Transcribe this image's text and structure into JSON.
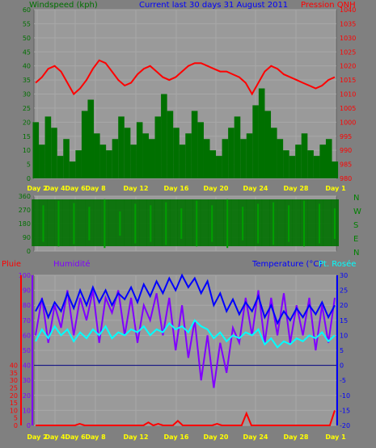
{
  "colors": {
    "background": "#808080",
    "plot_bg": "#9a9a9a",
    "grid": "#a8a8a8",
    "wind": "#007000",
    "pressure": "#ff0000",
    "humidity": "#8000ff",
    "temperature": "#0000ff",
    "dew": "#00ffff",
    "rain": "#ff0000",
    "day_label": "#ffff00",
    "title": "#0000ff",
    "dir_letter": "#008000"
  },
  "titles": {
    "wind": "Windspeed (kph)",
    "period": "Current last 30 days 31 August 2011",
    "pressure": "Pression QNH",
    "rain": "Pluie",
    "humidity": "Humidité",
    "temperature": "Temperature (°C)",
    "dew": "Pt. Rosée"
  },
  "direction_letters": [
    "N",
    "W",
    "S",
    "E",
    "N"
  ],
  "chart_data": [
    {
      "type": "area",
      "name": "wind-pressure",
      "x_ticks": [
        "Day 2",
        "Day 4",
        "Day 6",
        "Day 8",
        "Day 12",
        "Day 16",
        "Day 20",
        "Day 24",
        "Day 28",
        "Day 1"
      ],
      "y_left": {
        "label": "Windspeed (kph)",
        "ticks": [
          0,
          5,
          10,
          15,
          20,
          25,
          30,
          35,
          40,
          45,
          50,
          55,
          60
        ],
        "ylim": [
          0,
          60
        ]
      },
      "y_right": {
        "label": "Pression QNH",
        "ticks": [
          980,
          985,
          990,
          995,
          1000,
          1005,
          1010,
          1015,
          1020,
          1025,
          1030,
          1035,
          1040
        ],
        "ylim": [
          980,
          1040
        ]
      },
      "series": [
        {
          "name": "Windspeed (kph)",
          "values": [
            20,
            12,
            22,
            18,
            8,
            14,
            6,
            10,
            24,
            28,
            16,
            12,
            10,
            14,
            22,
            18,
            12,
            20,
            16,
            14,
            22,
            30,
            24,
            18,
            12,
            16,
            24,
            20,
            14,
            10,
            8,
            14,
            18,
            22,
            14,
            16,
            26,
            32,
            24,
            18,
            14,
            10,
            8,
            12,
            16,
            10,
            8,
            12,
            14,
            6
          ]
        },
        {
          "name": "Pression QNH",
          "values": [
            1014,
            1016,
            1019,
            1020,
            1018,
            1014,
            1010,
            1012,
            1015,
            1019,
            1022,
            1021,
            1018,
            1015,
            1013,
            1014,
            1017,
            1019,
            1020,
            1018,
            1016,
            1015,
            1016,
            1018,
            1020,
            1021,
            1021,
            1020,
            1019,
            1018,
            1018,
            1017,
            1016,
            1014,
            1010,
            1014,
            1018,
            1020,
            1019,
            1017,
            1016,
            1015,
            1014,
            1013,
            1012,
            1013,
            1015,
            1016
          ]
        }
      ]
    },
    {
      "type": "area",
      "name": "wind-direction",
      "x_ticks": [
        "Day 2",
        "Day 4",
        "Day 6",
        "Day 8",
        "Day 12",
        "Day 16",
        "Day 20",
        "Day 24",
        "Day 28",
        "Day 1"
      ],
      "y": {
        "ticks": [
          0,
          90,
          180,
          270,
          360
        ],
        "ylim": [
          0,
          360
        ]
      },
      "series": [
        {
          "values": [
            60,
            300,
            30,
            330,
            45,
            315,
            80,
            290,
            20,
            340,
            100,
            260,
            50,
            310,
            70,
            300,
            30,
            320,
            60,
            280,
            40,
            330,
            90,
            300,
            60,
            340,
            30,
            290,
            80,
            310,
            50,
            320,
            40,
            300,
            70,
            330,
            20,
            310,
            60,
            280
          ]
        }
      ]
    },
    {
      "type": "line",
      "name": "rain-humidity-temperature",
      "x_ticks": [
        "Day 2",
        "Day 4",
        "Day 6",
        "Day 8",
        "Day 12",
        "Day 16",
        "Day 20",
        "Day 24",
        "Day 28",
        "Day 1"
      ],
      "y_left": {
        "label": "Pluie / Humidité",
        "rain_ticks": [
          0,
          5,
          10,
          15,
          20,
          25,
          30,
          35,
          40
        ],
        "ticks": [
          0,
          10,
          20,
          30,
          40,
          50,
          60,
          70,
          80,
          90,
          100
        ],
        "ylim": [
          0,
          100
        ]
      },
      "y_right": {
        "label": "Temperature (°C)",
        "ticks": [
          -20,
          -15,
          -10,
          -5,
          0,
          5,
          10,
          15,
          20,
          25,
          30
        ],
        "ylim": [
          -20,
          30
        ]
      },
      "reference_line": 0,
      "series": [
        {
          "name": "Humidité",
          "values": [
            60,
            85,
            55,
            80,
            65,
            90,
            60,
            85,
            70,
            90,
            55,
            85,
            75,
            90,
            60,
            85,
            55,
            80,
            70,
            88,
            60,
            85,
            50,
            80,
            45,
            70,
            30,
            60,
            25,
            55,
            35,
            65,
            55,
            85,
            60,
            90,
            55,
            85,
            60,
            88,
            55,
            80,
            60,
            85,
            50,
            80,
            55,
            85
          ]
        },
        {
          "name": "Temperature (°C)",
          "values": [
            18,
            22,
            16,
            21,
            18,
            24,
            19,
            25,
            20,
            26,
            21,
            25,
            20,
            24,
            22,
            26,
            21,
            27,
            23,
            28,
            24,
            29,
            25,
            30,
            26,
            29,
            24,
            28,
            20,
            24,
            18,
            22,
            17,
            21,
            18,
            23,
            16,
            20,
            14,
            18,
            15,
            19,
            16,
            20,
            17,
            21,
            16,
            20
          ]
        },
        {
          "name": "Pt. Rosée",
          "values": [
            8,
            12,
            9,
            13,
            10,
            12,
            8,
            11,
            9,
            12,
            10,
            13,
            9,
            11,
            10,
            12,
            11,
            13,
            10,
            12,
            11,
            14,
            12,
            13,
            11,
            15,
            13,
            12,
            9,
            11,
            8,
            10,
            9,
            11,
            10,
            12,
            7,
            9,
            6,
            8,
            7,
            9,
            8,
            10,
            9,
            11,
            8,
            10
          ]
        },
        {
          "name": "Pluie",
          "values": [
            0,
            0,
            0,
            0,
            0,
            0,
            0,
            0,
            0,
            1,
            0,
            0,
            0,
            0,
            0,
            0,
            0,
            0,
            0,
            0,
            0,
            0,
            0,
            2,
            0,
            1,
            0,
            0,
            0,
            3,
            0,
            0,
            0,
            0,
            0,
            0,
            0,
            1,
            0,
            0,
            0,
            0,
            0,
            8,
            0,
            0,
            0,
            0,
            0,
            0,
            0,
            0,
            0,
            0,
            0,
            0,
            0,
            0,
            0,
            0,
            0,
            10
          ]
        }
      ]
    }
  ]
}
